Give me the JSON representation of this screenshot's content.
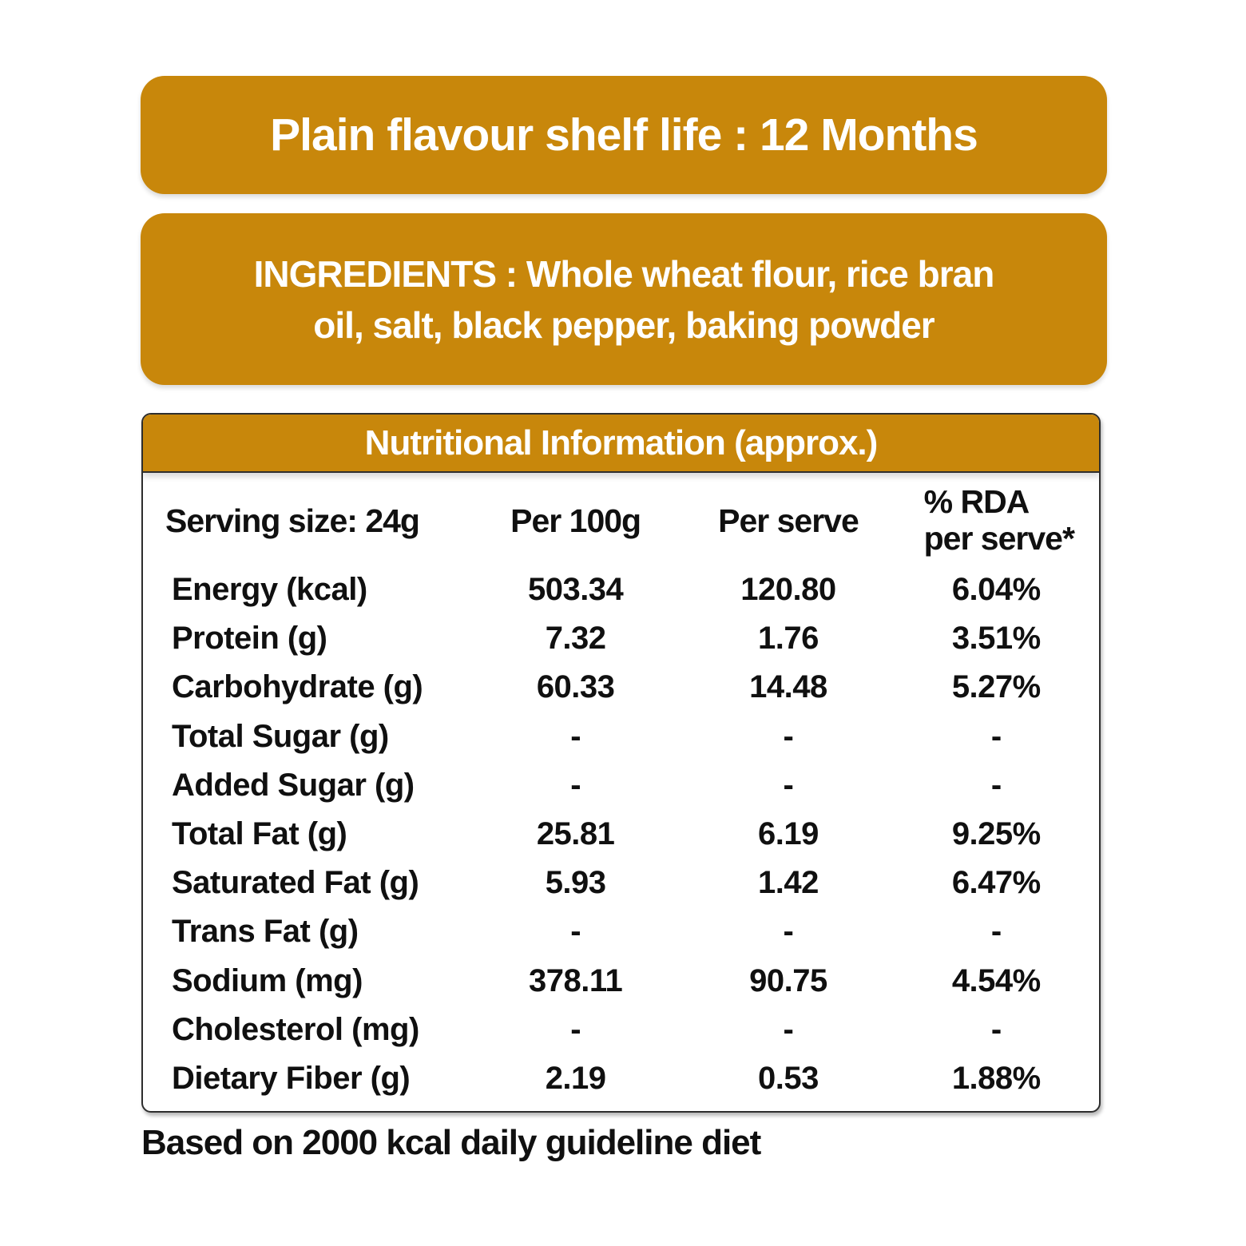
{
  "colors": {
    "accent": "#C8870B",
    "card_border": "#2E2E2E",
    "text": "#101010",
    "banner_text": "#FFFFFF"
  },
  "banners": {
    "shelf_life": {
      "label": "Plain flavour shelf life : 12 Months"
    },
    "ingredients": {
      "lines": [
        "INGREDIENTS : Whole wheat flour, rice bran",
        "oil, salt, black pepper, baking powder"
      ]
    }
  },
  "table": {
    "title": "Nutritional Information (approx.)",
    "header": {
      "serving_size": "Serving size: 24g",
      "per_100g": "Per 100g",
      "per_serve": "Per serve",
      "rda_line1": "% RDA",
      "rda_line2": "per serve*"
    },
    "rows": [
      {
        "label": "Energy (kcal)",
        "per_100g": "503.34",
        "per_serve": "120.80",
        "rda": "6.04%"
      },
      {
        "label": "Protein (g)",
        "per_100g": "7.32",
        "per_serve": "1.76",
        "rda": "3.51%"
      },
      {
        "label": "Carbohydrate (g)",
        "per_100g": "60.33",
        "per_serve": "14.48",
        "rda": "5.27%"
      },
      {
        "label": "Total Sugar (g)",
        "per_100g": "-",
        "per_serve": "-",
        "rda": "-"
      },
      {
        "label": "Added Sugar (g)",
        "per_100g": "-",
        "per_serve": "-",
        "rda": "-"
      },
      {
        "label": "Total Fat (g)",
        "per_100g": "25.81",
        "per_serve": "6.19",
        "rda": "9.25%"
      },
      {
        "label": "Saturated Fat (g)",
        "per_100g": "5.93",
        "per_serve": "1.42",
        "rda": "6.47%"
      },
      {
        "label": "Trans Fat (g)",
        "per_100g": "-",
        "per_serve": "-",
        "rda": "-"
      },
      {
        "label": "Sodium (mg)",
        "per_100g": "378.11",
        "per_serve": "90.75",
        "rda": "4.54%"
      },
      {
        "label": "Cholesterol (mg)",
        "per_100g": "-",
        "per_serve": "-",
        "rda": "-"
      },
      {
        "label": "Dietary Fiber (g)",
        "per_100g": "2.19",
        "per_serve": "0.53",
        "rda": "1.88%"
      }
    ]
  },
  "footer": {
    "note": "Based on 2000 kcal daily guideline diet"
  }
}
